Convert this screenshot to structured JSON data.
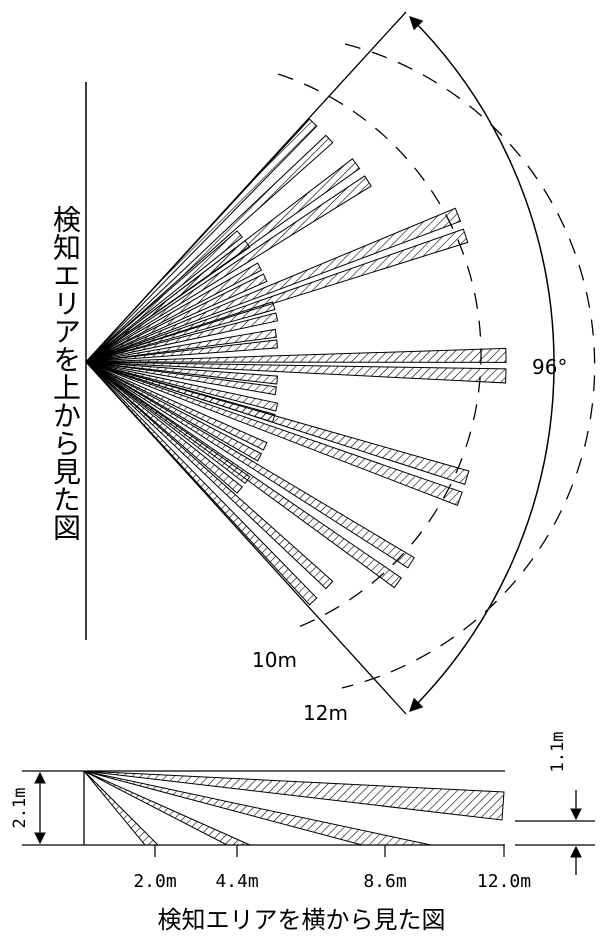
{
  "top_view": {
    "title": "検知エリアを上から見た図",
    "angle_label": "96°",
    "distance_labels": [
      "10m",
      "12m"
    ]
  },
  "side_view": {
    "title": "検知エリアを横から見た図",
    "height_label": "2.1m",
    "offset_label": "1.1m",
    "distance_labels": [
      "2.0m",
      "4.4m",
      "8.6m",
      "12.0m"
    ]
  }
}
